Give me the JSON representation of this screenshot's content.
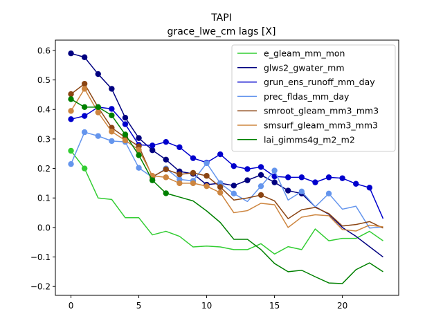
{
  "chart_data": {
    "type": "line",
    "title": "TAPI",
    "subtitle": "grace_lwe_cm lags [X]",
    "xlabel": "",
    "ylabel": "",
    "xlim": [
      -1.15,
      24.15
    ],
    "ylim": [
      -0.23,
      0.635
    ],
    "xticks": [
      0,
      5,
      10,
      15,
      20
    ],
    "yticks": [
      -0.2,
      -0.1,
      0.0,
      0.1,
      0.2,
      0.3,
      0.4,
      0.5,
      0.6
    ],
    "ytick_labels": [
      "−0.2",
      "−0.1",
      "0.0",
      "0.1",
      "0.2",
      "0.3",
      "0.4",
      "0.5",
      "0.6"
    ],
    "grid": false,
    "legend_position": "top-right",
    "x": [
      0,
      1,
      2,
      3,
      4,
      5,
      6,
      7,
      8,
      9,
      10,
      11,
      12,
      13,
      14,
      15,
      16,
      17,
      18,
      19,
      20,
      21,
      22,
      23
    ],
    "series": [
      {
        "name": "e_gleam_mm_mon",
        "color": "#32cd32",
        "values": [
          0.26,
          0.2,
          0.1,
          0.095,
          0.033,
          0.033,
          -0.025,
          -0.013,
          -0.03,
          -0.066,
          -0.063,
          -0.066,
          -0.075,
          -0.075,
          -0.055,
          -0.09,
          -0.065,
          -0.075,
          -0.005,
          -0.045,
          -0.037,
          -0.037,
          -0.013,
          -0.045
        ],
        "markers": [
          0,
          1
        ]
      },
      {
        "name": "glws2_gwater_mm",
        "color": "#000080",
        "values": [
          0.59,
          0.577,
          0.52,
          0.47,
          0.372,
          0.303,
          0.262,
          0.23,
          0.19,
          0.182,
          0.145,
          0.15,
          0.142,
          0.16,
          0.178,
          0.153,
          0.125,
          0.115,
          0.07,
          0.045,
          0.0,
          -0.03,
          -0.065,
          -0.1
        ],
        "markers": [
          0,
          1,
          2,
          3,
          4,
          5,
          6,
          7,
          8,
          9,
          10,
          11,
          12,
          13,
          14,
          15,
          16,
          17
        ]
      },
      {
        "name": "grun_ens_runoff_mm_day",
        "color": "#0000cd",
        "values": [
          0.367,
          0.378,
          0.408,
          0.402,
          0.35,
          0.28,
          0.278,
          0.29,
          0.272,
          0.235,
          0.22,
          0.248,
          0.208,
          0.198,
          0.205,
          0.173,
          0.17,
          0.17,
          0.153,
          0.17,
          0.167,
          0.148,
          0.135,
          0.03
        ],
        "markers": [
          0,
          1,
          2,
          3,
          4,
          5,
          6,
          7,
          8,
          9,
          10,
          11,
          12,
          13,
          14,
          15,
          16,
          17,
          18,
          19,
          20,
          21,
          22
        ]
      },
      {
        "name": "prec_fldas_mm_day",
        "color": "#6495ed",
        "values": [
          0.215,
          0.323,
          0.31,
          0.293,
          0.29,
          0.202,
          0.17,
          0.2,
          0.163,
          0.158,
          0.218,
          0.15,
          0.115,
          0.088,
          0.14,
          0.193,
          0.093,
          0.122,
          0.07,
          0.115,
          0.062,
          0.072,
          -0.002,
          0.002
        ],
        "markers": [
          0,
          1,
          2,
          3,
          4,
          5,
          6,
          7,
          8,
          9,
          10,
          11,
          12,
          14,
          15,
          17,
          19
        ]
      },
      {
        "name": "smroot_gleam_mm3_mm3",
        "color": "#8b4513",
        "values": [
          0.452,
          0.487,
          0.407,
          0.338,
          0.305,
          0.275,
          0.172,
          0.197,
          0.18,
          0.185,
          0.175,
          0.137,
          0.093,
          0.1,
          0.11,
          0.09,
          0.03,
          0.06,
          0.068,
          0.047,
          0.005,
          0.01,
          0.02,
          -0.002
        ],
        "markers": [
          0,
          1,
          2,
          3,
          4,
          5,
          6,
          7,
          8,
          9,
          10,
          11,
          14
        ]
      },
      {
        "name": "smsurf_gleam_mm3_mm3",
        "color": "#cd853f",
        "values": [
          0.395,
          0.47,
          0.39,
          0.325,
          0.295,
          0.263,
          0.175,
          0.17,
          0.15,
          0.15,
          0.14,
          0.118,
          0.05,
          0.057,
          0.082,
          0.077,
          0.0,
          0.035,
          0.043,
          0.04,
          -0.007,
          -0.012,
          0.008,
          0.002
        ],
        "markers": [
          0,
          1,
          2,
          3,
          4,
          5,
          6,
          7,
          8,
          9,
          10,
          11
        ]
      },
      {
        "name": "lai_gimms4g_m2_m2",
        "color": "#008000",
        "values": [
          0.435,
          0.408,
          0.408,
          0.38,
          0.315,
          0.245,
          0.16,
          0.116,
          0.103,
          0.09,
          0.056,
          0.017,
          -0.04,
          -0.04,
          -0.075,
          -0.122,
          -0.15,
          -0.145,
          -0.167,
          -0.188,
          -0.19,
          -0.143,
          -0.12,
          -0.15
        ],
        "markers": [
          0,
          1,
          2,
          3,
          4,
          5,
          6,
          7
        ]
      }
    ]
  }
}
